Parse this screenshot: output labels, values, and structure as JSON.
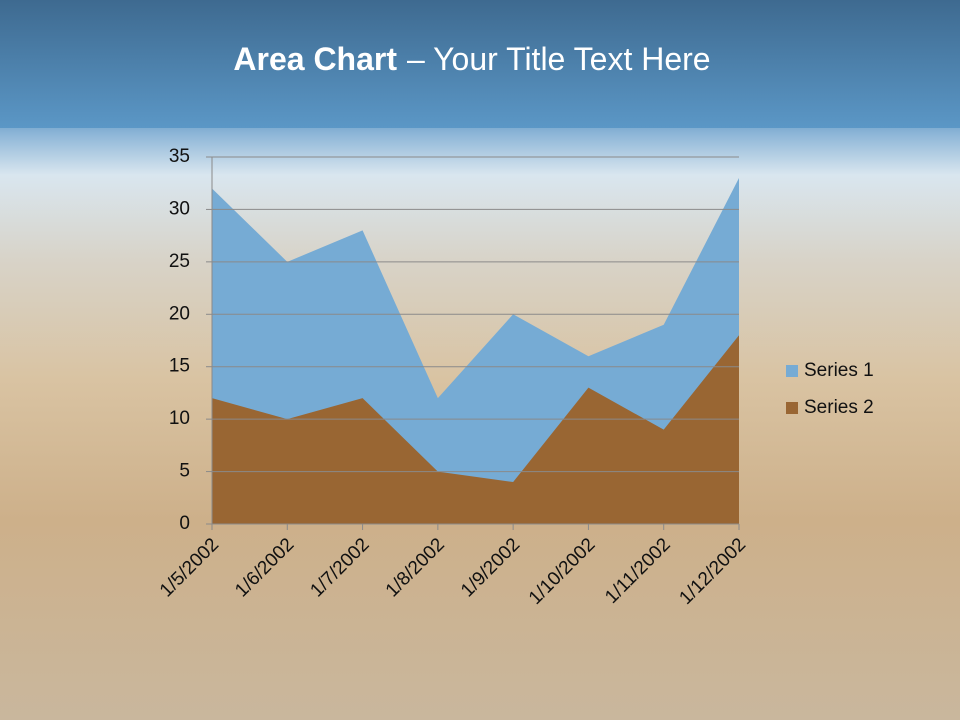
{
  "chart_data": {
    "type": "area",
    "title": "Area Chart",
    "subtitle": "– Your Title Text Here",
    "categories": [
      "1/5/2002",
      "1/6/2002",
      "1/7/2002",
      "1/8/2002",
      "1/9/2002",
      "1/10/2002",
      "1/11/2002",
      "1/12/2002"
    ],
    "series": [
      {
        "name": "Series 1",
        "color": "#76abd4",
        "values": [
          32,
          25,
          28,
          12,
          20,
          16,
          19,
          33
        ]
      },
      {
        "name": "Series 2",
        "color": "#996633",
        "values": [
          12,
          10,
          12,
          5,
          4,
          13,
          9,
          18
        ]
      }
    ],
    "ylim": [
      0,
      35
    ],
    "yticks": [
      0,
      5,
      10,
      15,
      20,
      25,
      30,
      35
    ],
    "grid": true,
    "legend": "right"
  }
}
